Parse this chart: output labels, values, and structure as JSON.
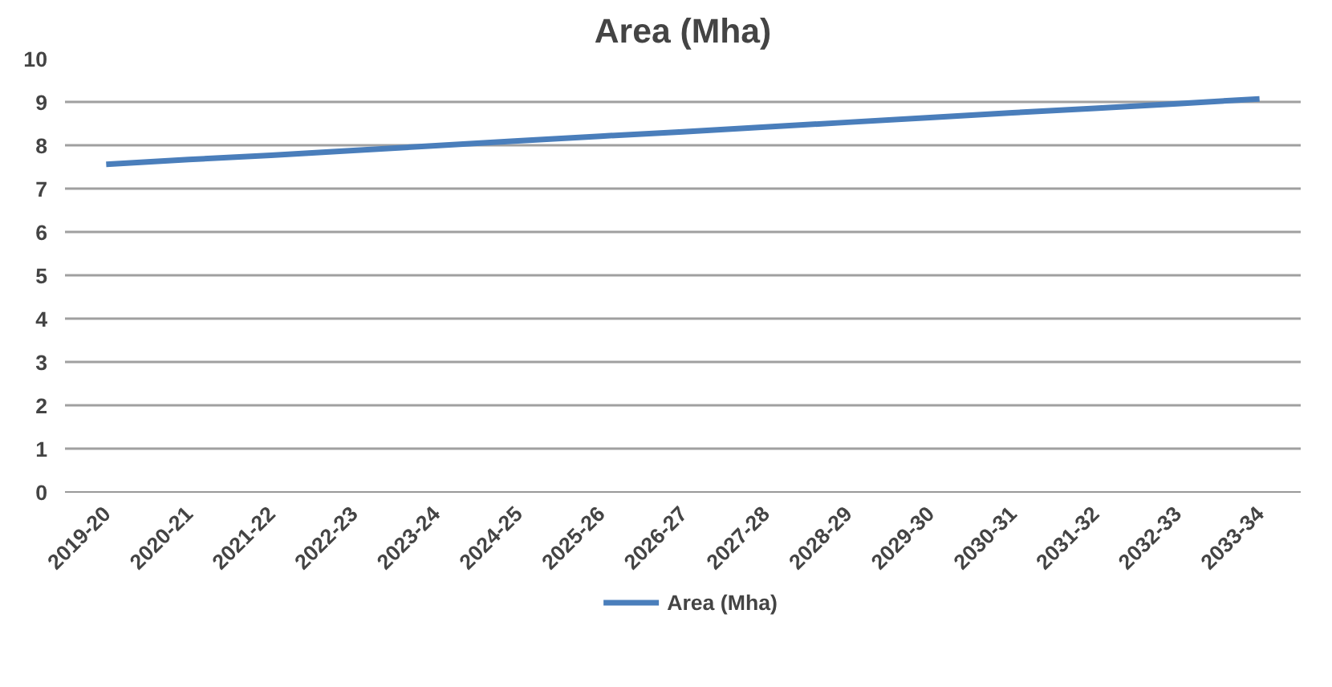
{
  "chart_data": {
    "type": "line",
    "title": "Area (Mha)",
    "categories": [
      "2019-20",
      "2020-21",
      "2021-22",
      "2022-23",
      "2023-24",
      "2024-25",
      "2025-26",
      "2026-27",
      "2027-28",
      "2028-29",
      "2029-30",
      "2030-31",
      "2031-32",
      "2032-33",
      "2033-34"
    ],
    "series": [
      {
        "name": "Area (Mha)",
        "color": "#4a7ebb",
        "values": [
          7.56,
          7.67,
          7.77,
          7.88,
          7.99,
          8.1,
          8.21,
          8.31,
          8.42,
          8.53,
          8.64,
          8.75,
          8.85,
          8.96,
          9.07
        ]
      }
    ],
    "ylim": [
      0,
      10
    ],
    "yticks": [
      0,
      1,
      2,
      3,
      4,
      5,
      6,
      7,
      8,
      9,
      10
    ],
    "grid": "y",
    "legend": "bottom",
    "marker": "none",
    "line_style": "solid"
  }
}
